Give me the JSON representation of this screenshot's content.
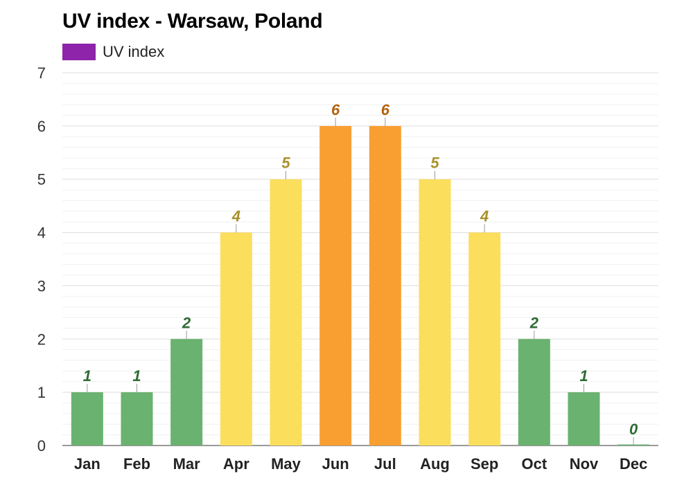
{
  "chart_data": {
    "type": "bar",
    "title": "UV index - Warsaw, Poland",
    "legend": [
      {
        "label": "UV index",
        "color": "#8e24aa"
      }
    ],
    "legend_placement": "top-left",
    "categories": [
      "Jan",
      "Feb",
      "Mar",
      "Apr",
      "May",
      "Jun",
      "Jul",
      "Aug",
      "Sep",
      "Oct",
      "Nov",
      "Dec"
    ],
    "series": [
      {
        "name": "UV index",
        "values": [
          1,
          1,
          2,
          4,
          5,
          6,
          6,
          5,
          4,
          2,
          1,
          0
        ]
      }
    ],
    "ylim": [
      0,
      7
    ],
    "yticks": [
      0,
      1,
      2,
      3,
      4,
      5,
      6,
      7
    ],
    "minor_gridlines": true,
    "xlabel": "",
    "ylabel": "",
    "color_scale": {
      "low": {
        "max": 2,
        "bar": "#6ab26f",
        "label": "#2e6b34"
      },
      "moderate": {
        "max": 5,
        "bar": "#fcde5d",
        "label": "#a8912a"
      },
      "high": {
        "max": 7,
        "bar": "#f99f32",
        "label": "#b5610e"
      }
    }
  }
}
